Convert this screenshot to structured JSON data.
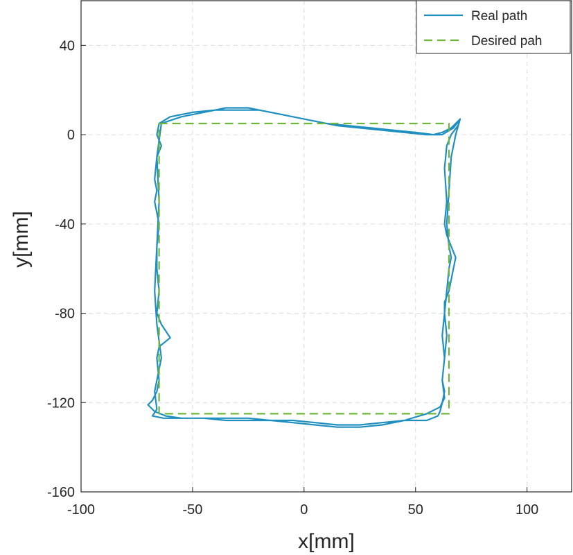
{
  "chart_data": {
    "type": "line",
    "title": "",
    "xlabel": "x[mm]",
    "ylabel": "y[mm]",
    "xlim": [
      -100,
      120
    ],
    "ylim": [
      -160,
      60
    ],
    "xticks": [
      -100,
      -50,
      0,
      50,
      100
    ],
    "yticks": [
      -160,
      -120,
      -80,
      -40,
      0,
      40
    ],
    "grid": true,
    "legend_position": "top-right",
    "series": [
      {
        "name": "Real path",
        "color": "#1f8fbf",
        "style": "solid",
        "x": [
          -65,
          -60,
          -50,
          -40,
          -30,
          -20,
          -10,
          0,
          10,
          20,
          30,
          40,
          50,
          58,
          62,
          66,
          68,
          70,
          69,
          66,
          64,
          63,
          64,
          63,
          64,
          66,
          68,
          67,
          65,
          63,
          63,
          62,
          63,
          62,
          63,
          62,
          61,
          60,
          55,
          45,
          35,
          25,
          15,
          5,
          -5,
          -15,
          -25,
          -35,
          -45,
          -55,
          -62,
          -67,
          -70,
          -68,
          -66,
          -65,
          -66,
          -65,
          -60,
          -64,
          -66,
          -65,
          -66,
          -66,
          -65,
          -67,
          -66,
          -67,
          -66,
          -64,
          -66,
          -65,
          -64,
          -55,
          -45,
          -35,
          -25,
          -15,
          -5,
          5,
          15,
          25,
          35,
          45,
          55,
          62,
          67,
          70,
          68,
          66,
          65,
          64,
          65,
          66,
          65,
          64,
          63,
          64,
          63,
          62,
          63,
          61,
          55,
          45,
          35,
          25,
          15,
          5,
          -5,
          -15,
          -25,
          -35,
          -45,
          -55,
          -63,
          -68,
          -66,
          -67,
          -64,
          -66,
          -67,
          -66,
          -65,
          -66,
          -64
        ],
        "y": [
          5,
          8,
          10,
          11,
          11,
          11,
          9,
          7,
          5,
          4,
          3,
          2,
          1,
          0,
          1,
          3,
          5,
          7,
          4,
          0,
          -5,
          -15,
          -30,
          -40,
          -45,
          -50,
          -55,
          -60,
          -70,
          -75,
          -80,
          -90,
          -100,
          -110,
          -115,
          -120,
          -124,
          -126,
          -128,
          -128,
          -129,
          -130,
          -130,
          -129,
          -128,
          -128,
          -128,
          -128,
          -127,
          -127,
          -126,
          -124,
          -121,
          -119,
          -115,
          -110,
          -100,
          -95,
          -91,
          -85,
          -80,
          -70,
          -60,
          -50,
          -40,
          -30,
          -25,
          -20,
          -10,
          -5,
          0,
          5,
          5,
          8,
          10,
          12,
          12,
          10,
          8,
          6,
          4,
          3,
          2,
          1,
          0,
          0,
          3,
          7,
          0,
          -10,
          -25,
          -40,
          -50,
          -55,
          -60,
          -70,
          -80,
          -90,
          -100,
          -110,
          -118,
          -122,
          -125,
          -128,
          -130,
          -131,
          -131,
          -130,
          -129,
          -128,
          -127,
          -127,
          -127,
          -127,
          -127,
          -126,
          -123,
          -115,
          -100,
          -85,
          -70,
          -50,
          -30,
          -10,
          5
        ]
      },
      {
        "name": "Desired pah",
        "color": "#6fb53c",
        "style": "dashed",
        "x": [
          -65,
          65,
          65,
          -65,
          -65
        ],
        "y": [
          5,
          5,
          -125,
          -125,
          5
        ]
      }
    ]
  }
}
